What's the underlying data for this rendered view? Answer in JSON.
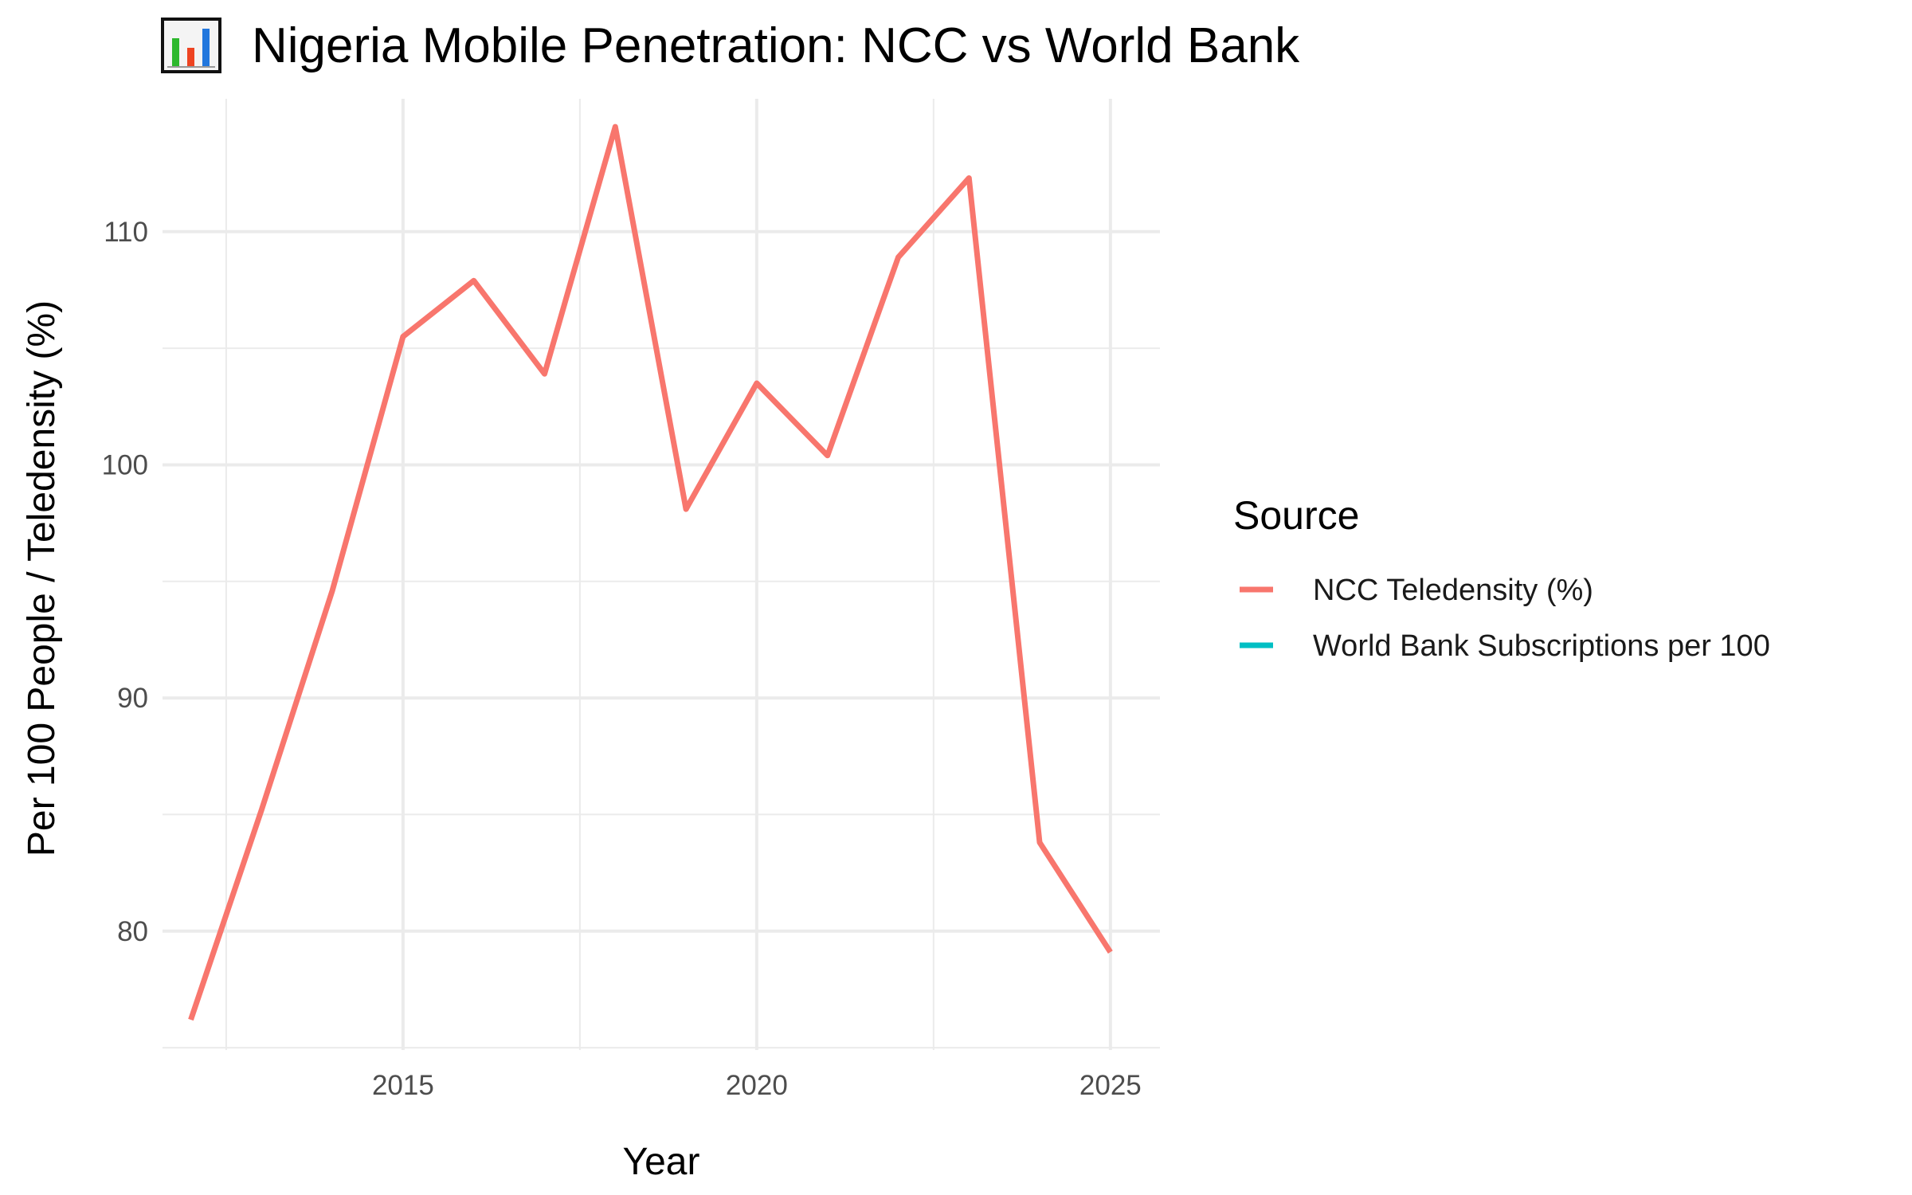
{
  "chart_data": {
    "type": "line",
    "title": "Nigeria Mobile Penetration: NCC vs World Bank",
    "title_icon": "bar-chart-emoji",
    "xlabel": "Year",
    "ylabel": "Per 100 People / Teledensity (%)",
    "xlim": [
      2011.6,
      2025.7
    ],
    "ylim": [
      74.9,
      115.7
    ],
    "x_ticks": [
      2015,
      2020,
      2025
    ],
    "x_minor_ticks": [
      2012.5,
      2017.5,
      2022.5
    ],
    "y_ticks": [
      80,
      90,
      100,
      110
    ],
    "y_minor_ticks": [
      75,
      85,
      95,
      105
    ],
    "grid": true,
    "legend": {
      "title": "Source",
      "position": "right"
    },
    "series": [
      {
        "name": "NCC Teledensity (%)",
        "color": "#F8766D",
        "x": [
          2012,
          2013,
          2014,
          2015,
          2016,
          2017,
          2018,
          2019,
          2020,
          2021,
          2022,
          2023,
          2024,
          2025
        ],
        "y": [
          76.2,
          85.2,
          94.6,
          105.5,
          107.9,
          103.9,
          114.5,
          98.1,
          103.5,
          100.4,
          108.9,
          112.3,
          83.8,
          79.1
        ]
      },
      {
        "name": "World Bank Subscriptions per 100",
        "color": "#00BFC4",
        "x": [],
        "y": []
      }
    ]
  }
}
